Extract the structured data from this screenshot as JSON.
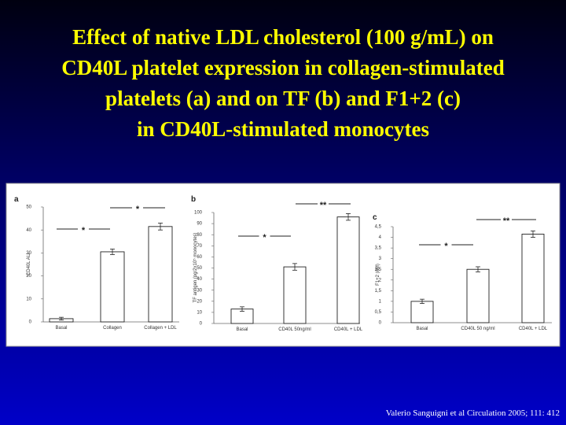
{
  "title_lines": [
    "Effect of native LDL cholesterol (100 g/mL) on",
    "CD40L platelet expression in collagen-stimulated",
    "platelets (a) and on TF (b) and F1+2 (c)",
    "in CD40L-stimulated monocytes"
  ],
  "citation": "Valerio Sanguigni et al Circulation 2005; 111: 412",
  "chart_data": [
    {
      "type": "bar",
      "panel": "a",
      "y_label": "CD40L AU",
      "categories": [
        "Basal",
        "Collagen",
        "Collagen + LDL"
      ],
      "values": [
        1.4,
        30.5,
        41.5
      ],
      "errors": [
        0.6,
        1.2,
        1.5
      ],
      "color": "#ffffff",
      "ylim": [
        0,
        50
      ],
      "yticks": [
        0,
        10,
        20,
        30,
        40,
        50
      ],
      "annotations": [
        "*",
        "*"
      ]
    },
    {
      "type": "bar",
      "panel": "b",
      "y_label": "TF antigen (pg/2x10⁵ monocytes)",
      "categories": [
        "Basal",
        "CD40L 50ng/ml",
        "CD40L + LDL"
      ],
      "values": [
        13,
        51,
        96
      ],
      "errors": [
        2,
        3,
        3
      ],
      "color": "#ffffff",
      "ylim": [
        0,
        100
      ],
      "yticks": [
        0,
        10,
        20,
        30,
        40,
        50,
        60,
        70,
        80,
        90,
        100
      ],
      "annotations": [
        "*",
        "**"
      ]
    },
    {
      "type": "bar",
      "panel": "c",
      "y_label": "F1+2 (nM)",
      "categories": [
        "Basal",
        "CD40L 50 ng/ml",
        "CD40L + LDL"
      ],
      "values": [
        1.0,
        2.5,
        4.15
      ],
      "errors": [
        0.1,
        0.12,
        0.15
      ],
      "color": "#ffffff",
      "ylim": [
        0,
        4.5
      ],
      "yticks": [
        0,
        {
          "value": 0.5,
          "label": "0,5"
        },
        1,
        {
          "value": 1.5,
          "label": "1,5"
        },
        2,
        {
          "value": 2.5,
          "label": "2,5"
        },
        3,
        {
          "value": 3.5,
          "label": "3,5"
        },
        4,
        {
          "value": 4.5,
          "label": "4,5"
        }
      ],
      "annotations": [
        "*",
        "**"
      ]
    }
  ]
}
